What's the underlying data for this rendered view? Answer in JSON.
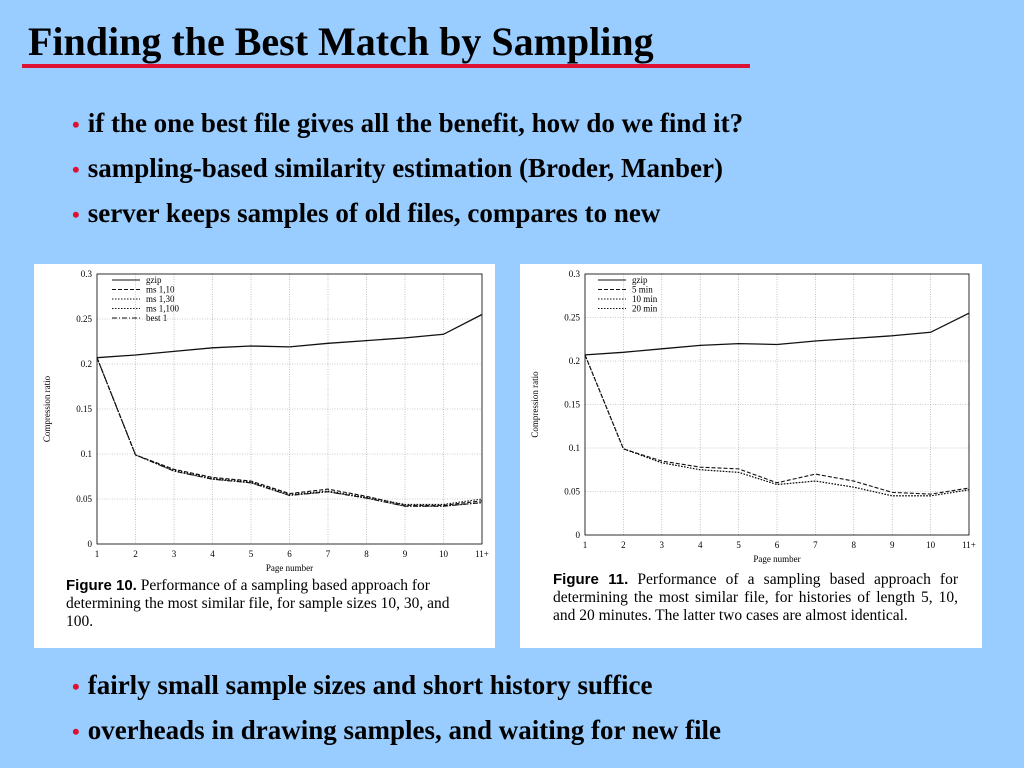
{
  "slide": {
    "title": "Finding the Best Match by Sampling",
    "bullets_top": [
      "if the one best file gives all the benefit, how do we find it?",
      "sampling-based similarity estimation   (Broder, Manber)",
      "server keeps samples of old files, compares to new"
    ],
    "bullets_bottom": [
      "fairly small sample sizes and short history suffice",
      "overheads in drawing samples, and waiting for new file"
    ],
    "bullet_glyph": "•",
    "accent_color": "#dd1133",
    "background_color": "#99ccff"
  },
  "figures": [
    {
      "caption_label": "Figure 10.",
      "caption_text": "Performance of a sampling based approach for determining the most similar file, for sample sizes 10, 30, and 100."
    },
    {
      "caption_label": "Figure 11.",
      "caption_text": "Performance of a sampling based approach for determining the most similar file, for histories of length 5, 10, and 20 minutes.  The latter two cases are almost identical."
    }
  ],
  "chart_data": [
    {
      "type": "line",
      "xlabel": "Page number",
      "ylabel": "Compression ratio",
      "x": [
        "1",
        "2",
        "3",
        "4",
        "5",
        "6",
        "7",
        "8",
        "9",
        "10",
        "11+"
      ],
      "ylim": [
        0,
        0.3
      ],
      "yticks": [
        "0",
        "0.05",
        "0.1",
        "0.15",
        "0.2",
        "0.25",
        "0.3"
      ],
      "grid": true,
      "legend_position": "top-left",
      "series": [
        {
          "name": "gzip",
          "dash": "solid",
          "values": [
            0.207,
            0.21,
            0.214,
            0.218,
            0.22,
            0.219,
            0.223,
            0.226,
            0.229,
            0.233,
            0.255
          ]
        },
        {
          "name": "ms 1,10",
          "dash": "dashed",
          "values": [
            0.207,
            0.099,
            0.083,
            0.074,
            0.07,
            0.056,
            0.061,
            0.053,
            0.043,
            0.043,
            0.048
          ]
        },
        {
          "name": "ms 1,30",
          "dash": "dotted",
          "values": [
            0.207,
            0.099,
            0.082,
            0.073,
            0.069,
            0.055,
            0.059,
            0.052,
            0.044,
            0.044,
            0.05
          ]
        },
        {
          "name": "ms 1,100",
          "dash": "dotted",
          "values": [
            0.207,
            0.099,
            0.081,
            0.072,
            0.068,
            0.054,
            0.058,
            0.051,
            0.042,
            0.042,
            0.046
          ]
        },
        {
          "name": "best 1",
          "dash": "dashdot",
          "values": [
            0.207,
            0.099,
            0.081,
            0.072,
            0.068,
            0.054,
            0.058,
            0.051,
            0.042,
            0.042,
            0.046
          ]
        }
      ]
    },
    {
      "type": "line",
      "xlabel": "Page number",
      "ylabel": "Compression ratio",
      "x": [
        "1",
        "2",
        "3",
        "4",
        "5",
        "6",
        "7",
        "8",
        "9",
        "10",
        "11+"
      ],
      "ylim": [
        0,
        0.3
      ],
      "yticks": [
        "0",
        "0.05",
        "0.1",
        "0.15",
        "0.2",
        "0.25",
        "0.3"
      ],
      "grid": true,
      "legend_position": "top-left",
      "series": [
        {
          "name": "gzip",
          "dash": "solid",
          "values": [
            0.207,
            0.21,
            0.214,
            0.218,
            0.22,
            0.219,
            0.223,
            0.226,
            0.229,
            0.233,
            0.255
          ]
        },
        {
          "name": "5 min",
          "dash": "dashed",
          "values": [
            0.207,
            0.099,
            0.085,
            0.078,
            0.076,
            0.06,
            0.07,
            0.062,
            0.049,
            0.047,
            0.054
          ]
        },
        {
          "name": "10 min",
          "dash": "dotted",
          "values": [
            0.207,
            0.099,
            0.083,
            0.075,
            0.072,
            0.058,
            0.062,
            0.055,
            0.045,
            0.045,
            0.052
          ]
        },
        {
          "name": "20 min",
          "dash": "dotted",
          "values": [
            0.207,
            0.099,
            0.083,
            0.075,
            0.072,
            0.058,
            0.062,
            0.055,
            0.045,
            0.045,
            0.052
          ]
        }
      ]
    }
  ]
}
